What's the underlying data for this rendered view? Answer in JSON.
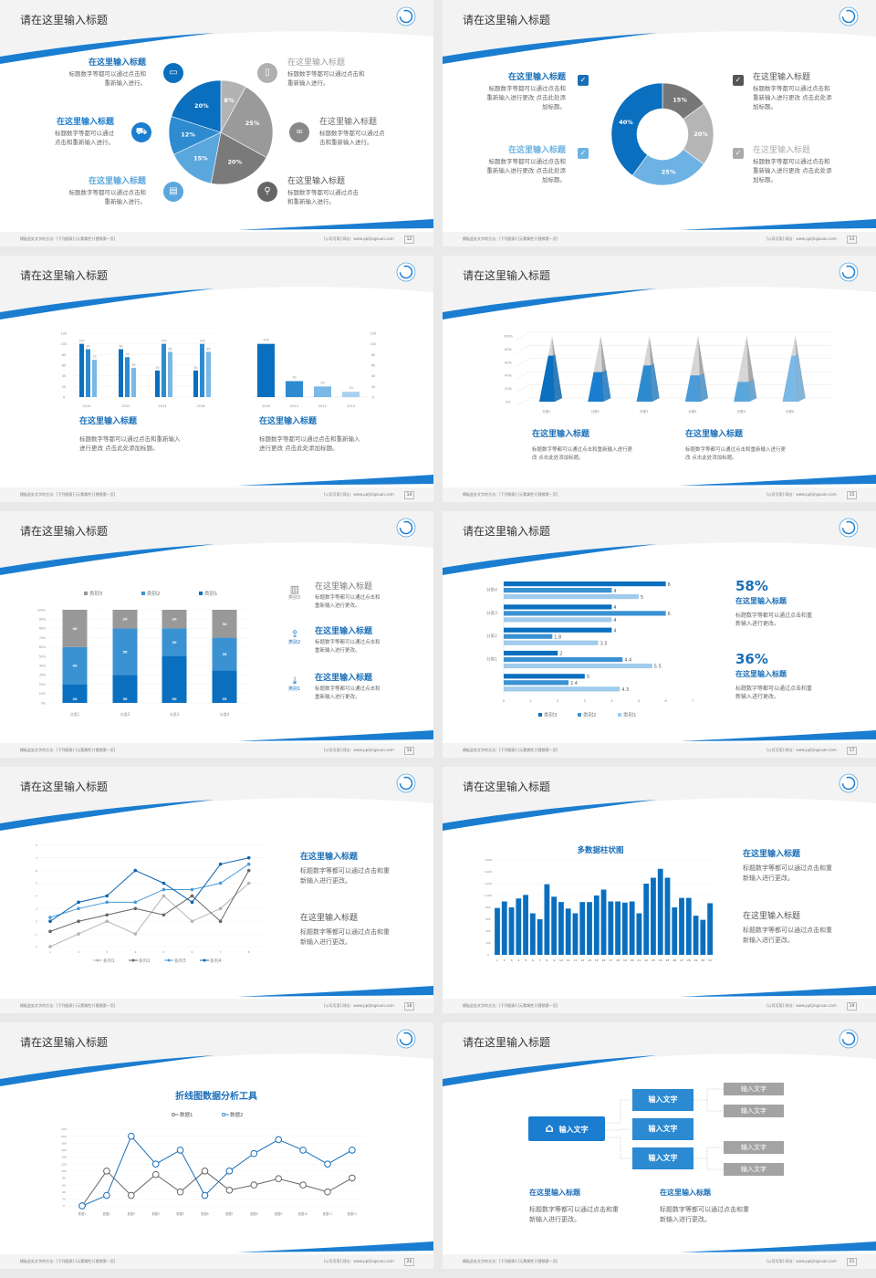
{
  "colors": {
    "dark_blue": "#0a6fbf",
    "mid_blue": "#2e8bd0",
    "light_blue": "#7ab8e6",
    "gray": "#999999",
    "accent": "#1a7dd0"
  },
  "slide_title": "请在这里输入标题",
  "logo_icon": "swirl-logo-icon",
  "footer": {
    "left": "模板此处文字的方法：[下列图表]-[元素属性]-[替换第一页]",
    "right": "[公司可用]  网址：www.pptjingxuan.com"
  },
  "slides": [
    {
      "page": "12",
      "left": [
        {
          "title": "在这里输入标题",
          "desc": "标题数字等都可以通过点击和\n重新输入进行。",
          "icon": "monitor-icon"
        },
        {
          "title": "在这里输入标题",
          "desc": "标题数字等都可以通过\n点击和重新输入进行。",
          "icon": "car-icon"
        },
        {
          "title": "在这里输入标题",
          "desc": "标题数字等都可以通过点击和\n重新输入进行。",
          "icon": "book-icon"
        }
      ],
      "right": [
        {
          "title": "在这里输入标题",
          "desc": "标题数字等都可以通过点击和\n重新输入进行。",
          "icon": "phone-icon"
        },
        {
          "title": "在这里输入标题",
          "desc": "标题数字等都可以通过点\n击和重新输入进行。",
          "icon": "binoculars-icon"
        },
        {
          "title": "在这里输入标题",
          "desc": "标题数字等都可以通过点击\n和重新输入进行。",
          "icon": "bicycle-icon"
        }
      ]
    },
    {
      "page": "13",
      "items": [
        {
          "title": "在这里输入标题",
          "desc": "标题数字等都可以通过点击和\n重新输入进行更改 点击此处添\n加标题。",
          "checked": true
        },
        {
          "title": "在这里输入标题",
          "desc": "标题数字等都可以通过点击和\n重新输入进行更改 点击此处添\n加标题。",
          "checked": true
        },
        {
          "title": "在这里输入标题",
          "desc": "标题数字等都可以通过点击和\n重新输入进行更改 点击此处添\n加标题。",
          "checked": true
        },
        {
          "title": "在这里输入标题",
          "desc": "标题数字等都可以通过点击和\n重新输入进行更改 点击此处添\n加标题。",
          "checked": true
        }
      ]
    },
    {
      "page": "14",
      "items": [
        {
          "title": "在这里输入标题",
          "desc": "标题数字等都可以通过点击和重新输入\n进行更改 点击此处添加标题。"
        },
        {
          "title": "在这里输入标题",
          "desc": "标题数字等都可以通过点击和重新输入\n进行更改 点击此处添加标题。"
        }
      ]
    },
    {
      "page": "15",
      "items": [
        {
          "title": "在这里输入标题",
          "desc": "标题数字等都可以通过点击和重新输入进行更\n改 点击此处添加标题。"
        },
        {
          "title": "在这里输入标题",
          "desc": "标题数字等都可以通过点击和重新输入进行更\n改 点击此处添加标题。"
        }
      ]
    },
    {
      "page": "16",
      "items": [
        {
          "title": "在这里输入标题",
          "desc": "标题数字等都可以通过点击和\n重新输入进行更改。",
          "icon": "bar-chart-icon",
          "label": "类别3"
        },
        {
          "title": "在这里输入标题",
          "desc": "标题数字等都可以通过点击和\n重新输入进行更改。",
          "icon": "upload-icon",
          "label": "类别2"
        },
        {
          "title": "在这里输入标题",
          "desc": "标题数字等都可以通过点击和\n重新输入进行更改。",
          "icon": "download-icon",
          "label": "类别1"
        }
      ]
    },
    {
      "page": "17",
      "items": [
        {
          "value": "58%",
          "title": "在这里输入标题",
          "desc": "标题数字等都可以通过点击和重\n新输入进行更改。"
        },
        {
          "value": "36%",
          "title": "在这里输入标题",
          "desc": "标题数字等都可以通过点击和重\n新输入进行更改。"
        }
      ]
    },
    {
      "page": "18",
      "items": [
        {
          "title": "在这里输入标题",
          "desc": "标题数字等都可以通过点击和重\n新输入进行更改。"
        },
        {
          "title": "在这里输入标题",
          "desc": "标题数字等都可以通过点击和重\n新输入进行更改。"
        }
      ]
    },
    {
      "page": "19",
      "items": [
        {
          "title": "在这里输入标题",
          "desc": "标题数字等都可以通过点击和重\n新输入进行更改。"
        },
        {
          "title": "在这里输入标题",
          "desc": "标题数字等都可以通过点击和重\n新输入进行更改。"
        }
      ]
    },
    {
      "page": "20"
    },
    {
      "page": "21",
      "root": "输入文字",
      "root_icon": "home-icon",
      "mid": [
        "输入文字",
        "输入文字",
        "输入文字"
      ],
      "leaves": [
        "输入文字",
        "输入文字",
        "输入文字",
        "输入文字"
      ],
      "items": [
        {
          "title": "在这里输入标题",
          "desc": "标题数字等都可以通过点击和重\n新输入进行更改。"
        },
        {
          "title": "在这里输入标题",
          "desc": "标题数字等都可以通过点击和重\n新输入进行更改。"
        }
      ]
    }
  ],
  "chart_data": [
    {
      "type": "pie",
      "labels": [
        "8%",
        "25%",
        "20%",
        "15%",
        "12%",
        "20%"
      ],
      "values": [
        8,
        25,
        20,
        15,
        12,
        20
      ],
      "colors": [
        "#b3b3b3",
        "#9a9a9a",
        "#7a7a7a",
        "#5aa7dd",
        "#2e8bd0",
        "#0a6fbf"
      ]
    },
    {
      "type": "pie",
      "donut": true,
      "labels": [
        "15%",
        "20%",
        "25%",
        "40%"
      ],
      "values": [
        15,
        20,
        25,
        40
      ],
      "colors": [
        "#777777",
        "#b5b5b5",
        "#6cb2e3",
        "#0a6fbf"
      ]
    },
    {
      "type": "bar",
      "categories": [
        "2010",
        "2012",
        "2014",
        "2016"
      ],
      "series": [
        {
          "values": [
            100,
            90,
            50,
            50
          ]
        },
        {
          "values": [
            90,
            75,
            100,
            100
          ]
        },
        {
          "values": [
            70,
            55,
            85,
            85
          ]
        }
      ],
      "ylim": [
        0,
        120
      ],
      "yticks": [
        0,
        20,
        40,
        60,
        80,
        100,
        120
      ]
    },
    {
      "type": "bar",
      "categories": [
        "2016",
        "2014",
        "2012",
        "2010"
      ],
      "values": [
        100,
        30,
        20,
        10
      ],
      "ylim": [
        0,
        120
      ],
      "yticks": [
        0,
        20,
        40,
        60,
        80,
        100,
        120
      ],
      "y_axis": "right"
    },
    {
      "type": "bar",
      "style": "3d-pyramid",
      "categories": [
        "分类1",
        "分类2",
        "分类3",
        "分类4",
        "分类5",
        "分类6"
      ],
      "values": [
        70,
        45,
        55,
        40,
        30,
        70
      ],
      "ylim": [
        0,
        100
      ],
      "yticks": [
        "0%",
        "20%",
        "40%",
        "60%",
        "80%",
        "100%"
      ]
    },
    {
      "type": "bar",
      "stacked": true,
      "percent": true,
      "categories": [
        "分类1",
        "分类2",
        "分类3",
        "分类4"
      ],
      "series": [
        {
          "name": "类别1",
          "values": [
            20,
            30,
            50,
            35
          ],
          "color": "#0a6fbf"
        },
        {
          "name": "类别2",
          "values": [
            40,
            50,
            30,
            35
          ],
          "color": "#3a92d3"
        },
        {
          "name": "类别3",
          "values": [
            40,
            20,
            20,
            30
          ],
          "color": "#999999"
        }
      ],
      "yticks": [
        "0%",
        "10%",
        "20%",
        "30%",
        "40%",
        "50%",
        "60%",
        "70%",
        "80%",
        "90%",
        "100%"
      ],
      "legend": "top"
    },
    {
      "type": "bar",
      "orientation": "horizontal",
      "categories": [
        "分类4",
        "分类3",
        "分类2",
        "分类1",
        ""
      ],
      "series": [
        {
          "name": "类别3",
          "values": [
            6,
            4,
            4,
            2,
            3
          ],
          "color": "#0a6fbf"
        },
        {
          "name": "类别2",
          "values": [
            4,
            6,
            1.8,
            4.4,
            2.4
          ],
          "color": "#3a92d3"
        },
        {
          "name": "类别1",
          "values": [
            5,
            4,
            3.5,
            5.5,
            4.3
          ],
          "color": "#a0cbec"
        }
      ],
      "xlim": [
        0,
        7
      ],
      "xticks": [
        0,
        1,
        2,
        3,
        4,
        5,
        6,
        7
      ],
      "legend": "bottom"
    },
    {
      "type": "line",
      "x": [
        1,
        2,
        3,
        4,
        5,
        6,
        7,
        8
      ],
      "series": [
        {
          "name": "系列1",
          "values": [
            0,
            1,
            2,
            1,
            4,
            2,
            3,
            5
          ],
          "color": "#b5b5b5"
        },
        {
          "name": "系列2",
          "values": [
            1.2,
            2,
            2.5,
            3,
            2.5,
            4,
            2,
            6
          ],
          "color": "#666666"
        },
        {
          "name": "系列3",
          "values": [
            2.3,
            3,
            3.5,
            3.5,
            4.5,
            4.5,
            5,
            6.5
          ],
          "color": "#4a9bd8"
        },
        {
          "name": "系列4",
          "values": [
            2,
            3.5,
            4,
            6,
            5,
            3.5,
            6.5,
            7
          ],
          "color": "#0a64b0"
        }
      ],
      "ylim": [
        0,
        8
      ],
      "yticks": [
        0,
        1,
        2,
        3,
        4,
        5,
        6,
        7,
        8
      ],
      "legend": "bottom"
    },
    {
      "type": "bar",
      "title": "多数据柱状图",
      "categories": [
        "1",
        "2",
        "3",
        "4",
        "5",
        "6",
        "7",
        "8",
        "9",
        "10",
        "11",
        "12",
        "13",
        "14",
        "15",
        "16",
        "17",
        "18",
        "19",
        "20",
        "21",
        "22",
        "23",
        "24",
        "25",
        "26",
        "27",
        "28",
        "29",
        "30",
        "31"
      ],
      "values": [
        790,
        900,
        800,
        950,
        1010,
        700,
        600,
        1190,
        980,
        890,
        780,
        700,
        890,
        890,
        1000,
        1100,
        900,
        900,
        880,
        900,
        700,
        1200,
        1300,
        1450,
        1300,
        800,
        960,
        960,
        660,
        590,
        870
      ],
      "ylim": [
        0,
        1600
      ],
      "yticks": [
        "0",
        "200",
        "400",
        "600",
        "800",
        "1,000",
        "1,200",
        "1,400",
        "1,600"
      ]
    },
    {
      "type": "line",
      "title": "折线图数据分析工具",
      "categories": [
        "数据1",
        "数据2",
        "数据3",
        "数据4",
        "数据5",
        "数据6",
        "数据7",
        "数据8",
        "数据9",
        "数据10",
        "数据11",
        "数据12"
      ],
      "series": [
        {
          "name": "数据1",
          "values": [
            0,
            100,
            30,
            90,
            40,
            100,
            45,
            60,
            78,
            60,
            40,
            80
          ],
          "color": "#666666"
        },
        {
          "name": "数据2",
          "values": [
            0,
            30,
            200,
            120,
            160,
            30,
            100,
            150,
            190,
            160,
            120,
            160
          ],
          "color": "#1a6fb8"
        }
      ],
      "ylim": [
        0,
        220
      ],
      "yticks": [
        0,
        20,
        40,
        60,
        80,
        100,
        120,
        140,
        160,
        180,
        200,
        220
      ],
      "legend": "top"
    }
  ]
}
